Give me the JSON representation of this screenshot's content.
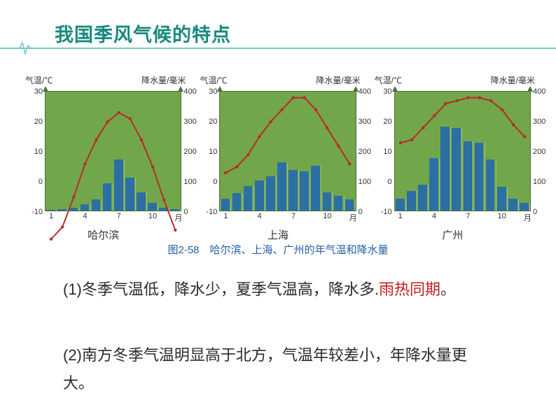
{
  "header": {
    "title": "我国季风气候的特点",
    "line_color": "#6fcac5",
    "heartbeat_color": "#6fcac5"
  },
  "common_axis": {
    "left_label": "气温/℃",
    "right_label": "降水量/毫米",
    "temp_ticks": [
      -10,
      0,
      10,
      20,
      30
    ],
    "precip_ticks": [
      0,
      100,
      200,
      300,
      400
    ],
    "x_ticks": [
      1,
      4,
      7,
      10
    ],
    "x_unit": "月",
    "temp_range": [
      -10,
      30
    ],
    "precip_range": [
      0,
      400
    ],
    "months": 12,
    "plot_bg": "#72a64a",
    "bar_color": "#2b6fa5",
    "line_color": "#b72a2a",
    "line_width": 2,
    "grid_color": "#ffffff",
    "label_fontsize": 12,
    "tick_fontsize": 11
  },
  "cities": [
    {
      "name": "哈尔滨",
      "precip_mm": [
        3,
        5,
        10,
        22,
        38,
        90,
        170,
        110,
        60,
        25,
        10,
        5
      ],
      "temp_c": [
        -19,
        -15,
        -5,
        6,
        14,
        20,
        23,
        21,
        14,
        5,
        -6,
        -16
      ],
      "temp_goes_below_axis": true
    },
    {
      "name": "上海",
      "precip_mm": [
        40,
        58,
        82,
        100,
        115,
        160,
        135,
        130,
        150,
        60,
        50,
        38
      ],
      "temp_c": [
        3,
        5,
        9,
        15,
        20,
        24,
        28,
        28,
        24,
        18,
        12,
        6
      ],
      "temp_goes_below_axis": false
    },
    {
      "name": "广州",
      "precip_mm": [
        40,
        65,
        85,
        175,
        280,
        275,
        230,
        225,
        170,
        80,
        40,
        25
      ],
      "temp_c": [
        13,
        14,
        18,
        22,
        26,
        27,
        28,
        28,
        27,
        24,
        19,
        15
      ],
      "temp_goes_below_axis": false
    }
  ],
  "figure_caption": "图2-58　哈尔滨、上海、广州的年气温和降水量",
  "body": {
    "p1_prefix": "(1)冬季气温低，降水少，夏季气温高，降水多.",
    "p1_red": "雨热同期",
    "p1_suffix": "。",
    "p2": "(2)南方冬季气温明显高于北方，气温年较差小，年降水量更大。"
  },
  "colors": {
    "title_color": "#18897f",
    "caption_color": "#2360a7",
    "body_color": "#2b2b2b",
    "red": "#c3211e",
    "background": "#ffffff"
  }
}
